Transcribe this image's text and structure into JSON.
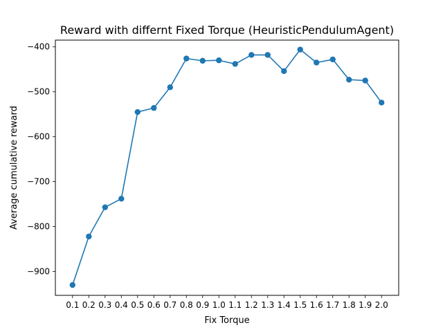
{
  "chart_data": {
    "type": "line",
    "title": "Reward with differnt Fixed Torque (HeuristicPendulumAgent)",
    "xlabel": "Fix Torque",
    "ylabel": "Average cumulative reward",
    "categories": [
      "0.1",
      "0.2",
      "0.3",
      "0.4",
      "0.5",
      "0.6",
      "0.7",
      "0.8",
      "0.9",
      "1.0",
      "1.1",
      "1.2",
      "1.3",
      "1.4",
      "1.5",
      "1.6",
      "1.7",
      "1.8",
      "1.9",
      "2.0"
    ],
    "series": [
      {
        "values": [
          -930,
          -822,
          -757,
          -738,
          -545,
          -536,
          -490,
          -426,
          -431,
          -430,
          -438,
          -418,
          -418,
          -454,
          -406,
          -435,
          -428,
          -473,
          -475,
          -524
        ]
      }
    ],
    "yticks": [
      -900,
      -800,
      -700,
      -600,
      -500,
      -400
    ],
    "ylim": [
      -953,
      -385
    ],
    "grid": false,
    "markers": true,
    "color": "#1f77b4"
  }
}
